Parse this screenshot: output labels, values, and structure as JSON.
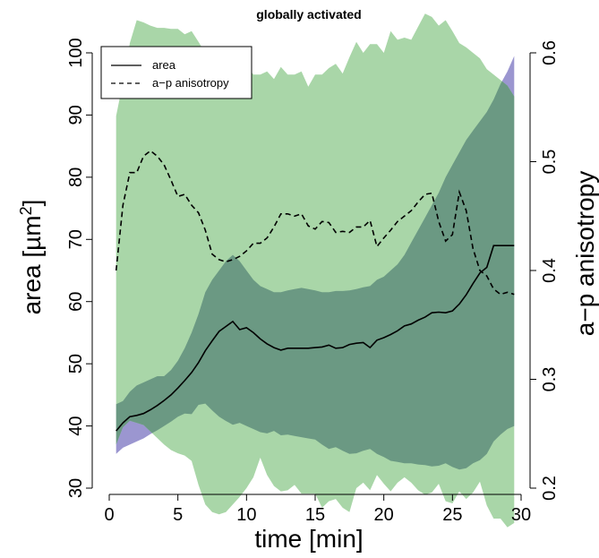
{
  "chart_data": {
    "type": "area",
    "title": "globally activated",
    "xlabel": "time [min]",
    "ylabel_left": "area [µm²]",
    "ylabel_right": "a−p anisotropy",
    "xlim": [
      0,
      30
    ],
    "ylim_left": [
      30,
      100
    ],
    "ylim_right": [
      0.2,
      0.6
    ],
    "x_ticks": [
      "0",
      "5",
      "10",
      "15",
      "20",
      "25",
      "30"
    ],
    "y_left_ticks": [
      "30",
      "40",
      "50",
      "60",
      "70",
      "80",
      "90",
      "100"
    ],
    "y_right_ticks": [
      "0.2",
      "0.3",
      "0.4",
      "0.5",
      "0.6"
    ],
    "legend": {
      "position": "top-left",
      "entries": [
        {
          "label": "area",
          "style": "solid"
        },
        {
          "label": "a−p anisotropy",
          "style": "dashed"
        }
      ]
    },
    "colors": {
      "area_band": "#9b96d0",
      "anisotropy_band": "#a9d6a8",
      "overlap": "#6b9983",
      "line": "#000000"
    },
    "x": [
      0.5,
      1.0,
      1.5,
      2.0,
      2.5,
      3.0,
      3.5,
      4.0,
      4.5,
      5.0,
      5.5,
      6.0,
      6.5,
      7.0,
      7.5,
      8.0,
      8.5,
      9.0,
      9.5,
      10.0,
      10.5,
      11.0,
      11.5,
      12.0,
      12.5,
      13.0,
      13.5,
      14.0,
      14.5,
      15.0,
      15.5,
      16.0,
      16.5,
      17.0,
      17.5,
      18.0,
      18.5,
      19.0,
      19.5,
      20.0,
      20.5,
      21.0,
      21.5,
      22.0,
      22.5,
      23.0,
      23.5,
      24.0,
      24.5,
      25.0,
      25.5,
      26.0,
      26.5,
      27.0,
      27.5,
      28.0,
      28.5,
      29.0,
      29.5
    ],
    "series": [
      {
        "name": "area",
        "axis": "left",
        "values": [
          39.2,
          40.5,
          41.5,
          41.7,
          42.0,
          42.6,
          43.3,
          44.1,
          45.0,
          46.1,
          47.3,
          48.6,
          50.2,
          52.1,
          53.7,
          55.2,
          56.0,
          56.8,
          55.5,
          55.8,
          55.0,
          54.0,
          53.2,
          52.6,
          52.2,
          52.5,
          52.5,
          52.5,
          52.5,
          52.6,
          52.7,
          53.0,
          52.5,
          52.6,
          53.1,
          53.3,
          53.4,
          52.6,
          53.8,
          54.2,
          54.7,
          55.3,
          56.1,
          56.4,
          57.0,
          57.5,
          58.2,
          58.3,
          58.2,
          58.5,
          59.6,
          61.1,
          62.9,
          64.6,
          65.5,
          69.0,
          69.0,
          69.0,
          69.0
        ],
        "band_lower": [
          35.5,
          36.5,
          37.0,
          37.5,
          38.0,
          38.7,
          39.3,
          40.0,
          40.7,
          41.5,
          42.0,
          41.9,
          43.4,
          43.6,
          42.5,
          41.5,
          40.8,
          40.2,
          40.5,
          40.0,
          39.5,
          39.0,
          38.8,
          39.2,
          38.5,
          38.6,
          38.4,
          38.2,
          38.0,
          37.8,
          37.0,
          36.3,
          36.6,
          36.0,
          35.5,
          35.6,
          36.0,
          36.3,
          35.5,
          35.0,
          34.4,
          34.2,
          34.0,
          34.0,
          33.8,
          33.7,
          33.5,
          33.6,
          34.0,
          33.4,
          33.0,
          33.2,
          34.0,
          34.5,
          35.5,
          37.5,
          38.6,
          39.5,
          40.0
        ],
        "band_upper": [
          43.5,
          44.0,
          45.5,
          46.5,
          47.0,
          47.5,
          48.0,
          48.0,
          49.0,
          50.5,
          52.5,
          55.0,
          58.0,
          61.5,
          63.5,
          65.0,
          66.5,
          67.5,
          66.5,
          65.0,
          63.5,
          62.5,
          62.0,
          61.5,
          61.5,
          61.8,
          62.0,
          62.2,
          62.0,
          61.8,
          61.5,
          61.5,
          61.7,
          61.7,
          61.8,
          62.0,
          62.3,
          62.5,
          63.5,
          64.0,
          65.0,
          66.0,
          67.5,
          69.5,
          71.5,
          73.5,
          75.5,
          77.5,
          80.0,
          82.0,
          84.0,
          86.0,
          87.5,
          89.0,
          90.5,
          92.5,
          95.0,
          97.0,
          99.5
        ]
      },
      {
        "name": "a−p anisotropy",
        "axis": "right",
        "values": [
          0.4,
          0.46,
          0.49,
          0.49,
          0.505,
          0.51,
          0.505,
          0.497,
          0.483,
          0.468,
          0.47,
          0.46,
          0.453,
          0.437,
          0.415,
          0.41,
          0.408,
          0.41,
          0.413,
          0.418,
          0.425,
          0.425,
          0.43,
          0.44,
          0.452,
          0.452,
          0.45,
          0.452,
          0.441,
          0.438,
          0.445,
          0.444,
          0.435,
          0.436,
          0.435,
          0.44,
          0.44,
          0.446,
          0.422,
          0.43,
          0.437,
          0.445,
          0.45,
          0.455,
          0.463,
          0.47,
          0.471,
          0.445,
          0.427,
          0.433,
          0.472,
          0.455,
          0.42,
          0.4,
          0.395,
          0.383,
          0.378,
          0.38,
          0.378
        ],
        "band_lower": [
          0.24,
          0.256,
          0.262,
          0.26,
          0.258,
          0.252,
          0.246,
          0.24,
          0.235,
          0.232,
          0.23,
          0.225,
          0.203,
          0.185,
          0.178,
          0.176,
          0.178,
          0.185,
          0.192,
          0.2,
          0.21,
          0.228,
          0.212,
          0.202,
          0.197,
          0.198,
          0.203,
          0.195,
          0.195,
          0.195,
          0.182,
          0.188,
          0.19,
          0.182,
          0.178,
          0.2,
          0.205,
          0.198,
          0.212,
          0.204,
          0.197,
          0.205,
          0.21,
          0.205,
          0.198,
          0.194,
          0.196,
          0.204,
          0.188,
          0.186,
          0.197,
          0.19,
          0.196,
          0.206,
          0.184,
          0.172,
          0.172,
          0.164,
          0.168
        ],
        "band_upper": [
          0.542,
          0.573,
          0.609,
          0.63,
          0.628,
          0.625,
          0.623,
          0.623,
          0.622,
          0.622,
          0.617,
          0.62,
          0.61,
          0.6,
          0.59,
          0.585,
          0.59,
          0.59,
          0.595,
          0.588,
          0.58,
          0.58,
          0.583,
          0.576,
          0.587,
          0.58,
          0.58,
          0.583,
          0.569,
          0.58,
          0.58,
          0.586,
          0.59,
          0.581,
          0.596,
          0.61,
          0.6,
          0.608,
          0.608,
          0.6,
          0.62,
          0.612,
          0.614,
          0.612,
          0.624,
          0.636,
          0.633,
          0.625,
          0.63,
          0.62,
          0.609,
          0.605,
          0.6,
          0.595,
          0.585,
          0.58,
          0.575,
          0.57,
          0.56
        ]
      }
    ]
  }
}
